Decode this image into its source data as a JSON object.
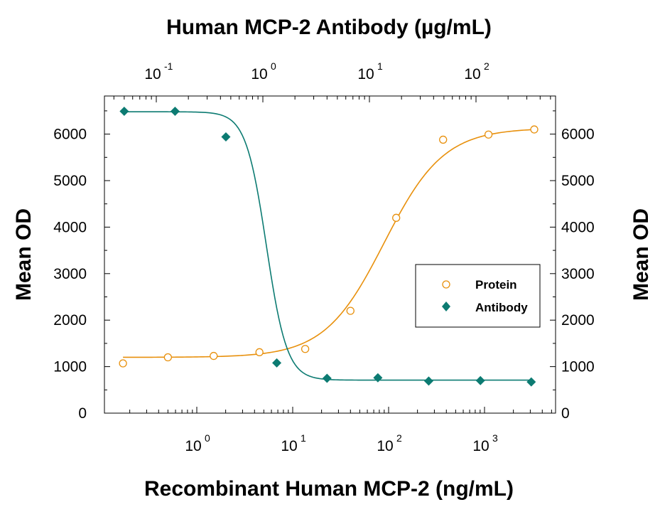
{
  "chart_data": {
    "type": "scatter",
    "top_xlabel": "Human MCP-2 Antibody (µg/mL)",
    "xlabel": "Recombinant Human MCP-2 (ng/mL)",
    "ylabel_left": "Mean OD",
    "ylabel_right": "Mean OD",
    "x_scale": "log",
    "y_ticks": [
      "0",
      "1000",
      "2000",
      "3000",
      "4000",
      "5000",
      "6000"
    ],
    "ylim": [
      0,
      6500
    ],
    "bottom_xlim": [
      0.1,
      7000
    ],
    "bottom_x_ticks": [
      {
        "base": "10",
        "exp": "0",
        "value": 1
      },
      {
        "base": "10",
        "exp": "1",
        "value": 10
      },
      {
        "base": "10",
        "exp": "2",
        "value": 100
      },
      {
        "base": "10",
        "exp": "3",
        "value": 1000
      }
    ],
    "top_xlim": [
      0.04,
      500
    ],
    "top_x_ticks": [
      {
        "base": "10",
        "exp": "-1",
        "value": 0.1
      },
      {
        "base": "10",
        "exp": "0",
        "value": 1
      },
      {
        "base": "10",
        "exp": "1",
        "value": 10
      },
      {
        "base": "10",
        "exp": "2",
        "value": 100
      }
    ],
    "grid": false,
    "legend_position": "center-right",
    "series": [
      {
        "name": "Protein",
        "axis": "bottom",
        "marker": "open-circle",
        "color": "#E8900C",
        "x": [
          0.17,
          0.5,
          1.5,
          4.5,
          13.5,
          40,
          120,
          370,
          1100,
          3300
        ],
        "y": [
          1070,
          1200,
          1230,
          1310,
          1380,
          2200,
          4200,
          5880,
          5990,
          6100
        ],
        "fit": {
          "bottom": 1200,
          "top": 6130,
          "ec50": 90,
          "hill": 1.4
        }
      },
      {
        "name": "Antibody",
        "axis": "top",
        "marker": "filled-diamond",
        "color": "#0C7B72",
        "x": [
          0.05,
          0.15,
          0.45,
          1.35,
          4,
          12,
          36,
          110,
          330
        ],
        "y": [
          6490,
          6490,
          5940,
          1080,
          750,
          760,
          690,
          700,
          670
        ],
        "fit": {
          "bottom": 710,
          "top": 6480,
          "ec50": 1.08,
          "hill": 4.5
        }
      }
    ]
  }
}
